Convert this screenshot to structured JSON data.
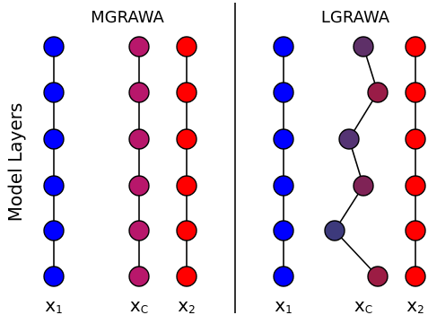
{
  "panels": [
    {
      "title": "MGRAWA",
      "columns": [
        {
          "base": "x",
          "sub": "1",
          "colors": [
            "#0000ff",
            "#0000ff",
            "#0000ff",
            "#0000ff",
            "#0000ff",
            "#0000ff"
          ],
          "path": [
            0,
            0,
            0,
            0,
            0,
            0
          ]
        },
        {
          "base": "x",
          "sub": "C",
          "colors": [
            "#b8176b",
            "#b8176b",
            "#b8176b",
            "#b8176b",
            "#b8176b",
            "#b8176b"
          ],
          "path": [
            0,
            0,
            0,
            0,
            0,
            0
          ]
        },
        {
          "base": "x",
          "sub": "2",
          "colors": [
            "#ff0000",
            "#ff0000",
            "#ff0000",
            "#ff0000",
            "#ff0000",
            "#ff0000"
          ],
          "path": [
            0,
            0,
            0,
            0,
            0,
            0
          ]
        }
      ]
    },
    {
      "title": "LGRAWA",
      "columns": [
        {
          "base": "x",
          "sub": "1",
          "colors": [
            "#0000ff",
            "#0000ff",
            "#0000ff",
            "#0000ff",
            "#0000ff",
            "#0000ff"
          ],
          "path": [
            0,
            0,
            0,
            0,
            0,
            0
          ]
        },
        {
          "base": "x",
          "sub": "C",
          "colors": [
            "#5e3068",
            "#991c47",
            "#553474",
            "#7f2356",
            "#3d3a7c",
            "#9c1c44"
          ],
          "path": [
            0,
            1,
            -1,
            0,
            -2,
            1
          ]
        },
        {
          "base": "x",
          "sub": "2",
          "colors": [
            "#ff0000",
            "#ff0000",
            "#ff0000",
            "#ff0000",
            "#ff0000",
            "#ff0000"
          ],
          "path": [
            0,
            0,
            0,
            0,
            0,
            0
          ]
        }
      ]
    }
  ],
  "y_axis_label": "Model Layers",
  "layer_count": 6
}
